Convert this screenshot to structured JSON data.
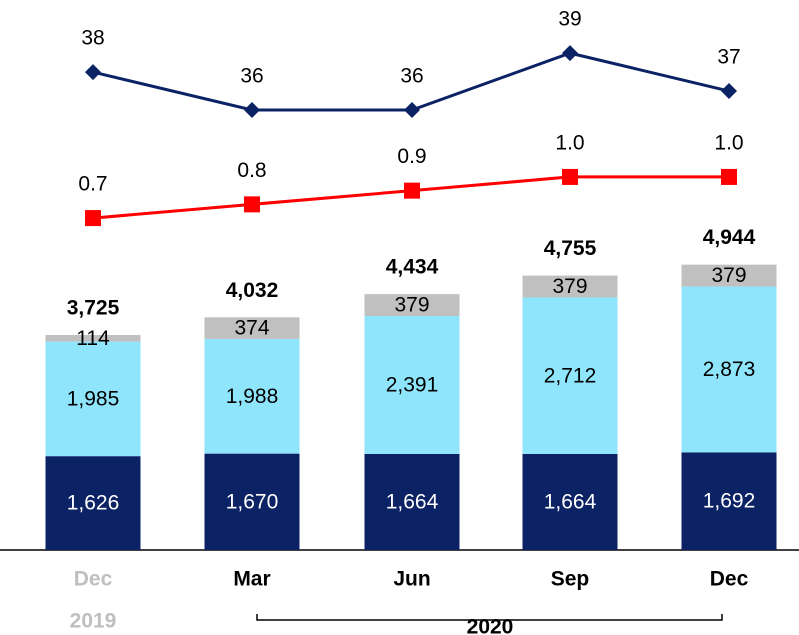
{
  "chart_data": {
    "type": "bar",
    "stacked": true,
    "categories": [
      "Dec",
      "Mar",
      "Jun",
      "Sep",
      "Dec"
    ],
    "category_label_colors": [
      "#bfbfbf",
      "#000000",
      "#000000",
      "#000000",
      "#000000"
    ],
    "group_labels": [
      "2019",
      "2020"
    ],
    "ylim": [
      0,
      9530
    ],
    "series": [
      {
        "color": "#0b2265",
        "label_color": "#ffffff",
        "values": [
          1626,
          1670,
          1664,
          1664,
          1692
        ],
        "value_labels": [
          "1,626",
          "1,670",
          "1,664",
          "1,664",
          "1,692"
        ]
      },
      {
        "color": "#8fe5fb",
        "label_color": "#000000",
        "values": [
          1985,
          1988,
          2391,
          2712,
          2873
        ],
        "value_labels": [
          "1,985",
          "1,988",
          "2,391",
          "2,712",
          "2,873"
        ]
      },
      {
        "color": "#c0c0c0",
        "label_color": "#000000",
        "values": [
          114,
          374,
          379,
          379,
          379
        ],
        "value_labels": [
          "114",
          "374",
          "379",
          "379",
          "379"
        ]
      }
    ],
    "totals": {
      "values": [
        3725,
        4032,
        4434,
        4755,
        4944
      ],
      "value_labels": [
        "3,725",
        "4,032",
        "4,434",
        "4,755",
        "4,944"
      ]
    },
    "lines": [
      {
        "type": "line",
        "axis": "y2",
        "color": "#0b2265",
        "marker": "diamond",
        "values": [
          38,
          36,
          36,
          39,
          37
        ]
      },
      {
        "type": "line",
        "axis": "y3",
        "color": "#ff0000",
        "marker": "square",
        "values": [
          0.7,
          0.8,
          0.9,
          1.0,
          1.0
        ],
        "value_labels": [
          "0.7",
          "0.8",
          "0.9",
          "1.0",
          "1.0"
        ]
      }
    ],
    "y2lim": [
      12.8,
      41.8
    ],
    "y3lim": [
      -1.72,
      2.29
    ]
  }
}
